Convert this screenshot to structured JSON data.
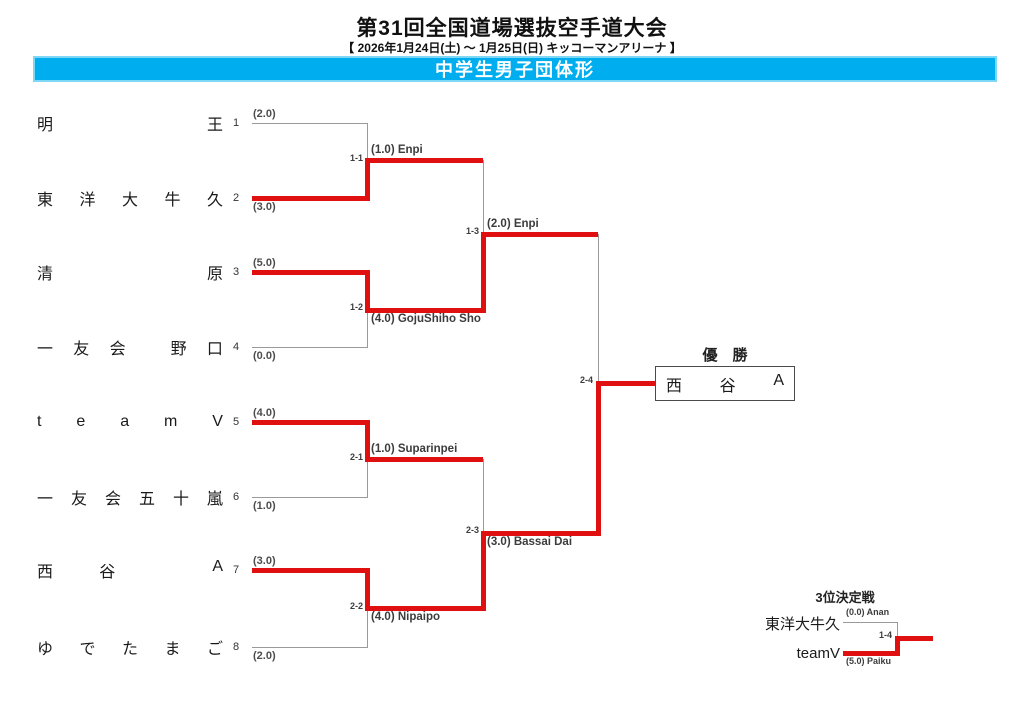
{
  "header": {
    "title": "第31回全国道場選抜空手道大会",
    "subtitle": "【 2026年1月24日(土) ～ 1月25日(日)  キッコーマンアリーナ 】",
    "banner": "中学生男子団体形"
  },
  "colors": {
    "red": "#e01010",
    "blue": "#00aeef",
    "gray": "#9a9a9a"
  },
  "chart_data": {
    "type": "table",
    "title": "中学生男子団体形 tournament bracket",
    "teams": [
      {
        "seed": "1",
        "name": "明王",
        "score": "(2.0)",
        "result": "lost 1-1"
      },
      {
        "seed": "2",
        "name": "東洋大牛久",
        "score": "(3.0)",
        "result": "won 1-1"
      },
      {
        "seed": "3",
        "name": "清原",
        "score": "(5.0)",
        "result": "won 1-2"
      },
      {
        "seed": "4",
        "name": "一友会 野口",
        "score": "(0.0)",
        "result": "lost 1-2"
      },
      {
        "seed": "5",
        "name": "teamV",
        "score": "(4.0)",
        "result": "won 2-1"
      },
      {
        "seed": "6",
        "name": "一友会五十嵐",
        "score": "(1.0)",
        "result": "lost 2-1"
      },
      {
        "seed": "7",
        "name": "西谷 A",
        "score": "(3.0)",
        "result": "won 2-2"
      },
      {
        "seed": "8",
        "name": "ゆでたまご",
        "score": "(2.0)",
        "result": "lost 2-2"
      }
    ],
    "champion": "西谷A"
  },
  "teams": [
    {
      "seed": "1",
      "name": "明王",
      "score": "(2.0)"
    },
    {
      "seed": "2",
      "name": "東洋大牛久",
      "score": "(3.0)"
    },
    {
      "seed": "3",
      "name": "清原",
      "score": "(5.0)"
    },
    {
      "seed": "4",
      "name": "一友会 野口",
      "score": "(0.0)"
    },
    {
      "seed": "5",
      "name": "teamV",
      "score": "(4.0)"
    },
    {
      "seed": "6",
      "name": "一友会五十嵐",
      "score": "(1.0)"
    },
    {
      "seed": "7",
      "name": "西谷 A",
      "score": "(3.0)"
    },
    {
      "seed": "8",
      "name": "ゆでたまご",
      "score": "(2.0)"
    }
  ],
  "matches": {
    "m11": {
      "id": "1-1",
      "kata": "(1.0) Enpi"
    },
    "m12": {
      "id": "1-2",
      "kata": "(4.0) GojuShiho Sho"
    },
    "m13": {
      "id": "1-3",
      "kata": "(2.0) Enpi"
    },
    "m21": {
      "id": "2-1",
      "kata": "(1.0) Suparinpei"
    },
    "m22": {
      "id": "2-2",
      "kata": "(4.0) Nipaipo"
    },
    "m23": {
      "id": "2-3",
      "kata": "(3.0) Bassai Dai"
    },
    "final": {
      "id": "2-4"
    }
  },
  "champion": {
    "label": "優　勝",
    "name": "西谷A"
  },
  "third_place": {
    "title": "3位決定戦",
    "team_top": "東洋大牛久",
    "team_bottom": "teamV",
    "match_id": "1-4",
    "kata_top": "(0.0) Anan",
    "kata_bottom": "(5.0) Paiku"
  }
}
